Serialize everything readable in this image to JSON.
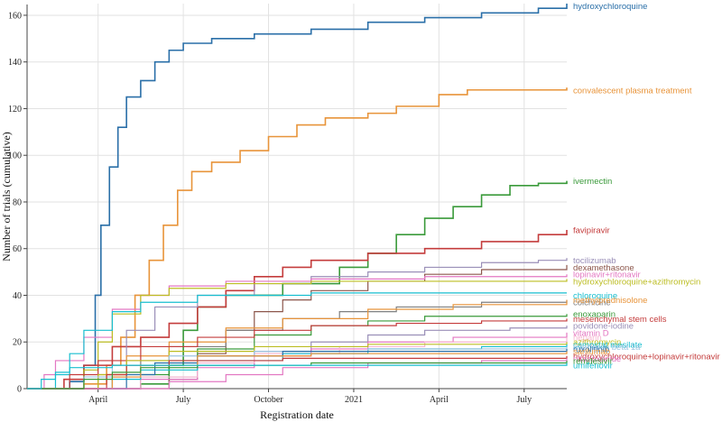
{
  "chart_data": {
    "type": "line",
    "title": "",
    "xlabel": "Registration date",
    "ylabel": "Number of trials (cumulative)",
    "xlim": [
      0,
      19
    ],
    "ylim": [
      0,
      165
    ],
    "x_ticks": [
      {
        "value": 2.5,
        "label": "April"
      },
      {
        "value": 5.5,
        "label": "July"
      },
      {
        "value": 8.5,
        "label": "October"
      },
      {
        "value": 11.5,
        "label": "2021"
      },
      {
        "value": 14.5,
        "label": "April"
      },
      {
        "value": 17.5,
        "label": "July"
      }
    ],
    "y_ticks": [
      0,
      20,
      40,
      60,
      80,
      100,
      120,
      140,
      160
    ],
    "grid": true,
    "series": [
      {
        "name": "hydroxychloroquine",
        "color": "#2a6fa8",
        "label_y": 164,
        "points": [
          [
            0.8,
            0
          ],
          [
            1.5,
            3
          ],
          [
            2,
            10
          ],
          [
            2.4,
            40
          ],
          [
            2.6,
            70
          ],
          [
            2.9,
            95
          ],
          [
            3.2,
            112
          ],
          [
            3.5,
            125
          ],
          [
            4,
            132
          ],
          [
            4.5,
            140
          ],
          [
            5,
            145
          ],
          [
            5.5,
            148
          ],
          [
            6.5,
            150
          ],
          [
            8,
            152
          ],
          [
            10,
            154
          ],
          [
            12,
            157
          ],
          [
            14,
            159
          ],
          [
            16,
            161
          ],
          [
            18,
            163
          ],
          [
            19,
            165
          ]
        ]
      },
      {
        "name": "convalescent plasma treatment",
        "color": "#e8943a",
        "label_y": 128,
        "points": [
          [
            0.8,
            0
          ],
          [
            2,
            2
          ],
          [
            2.8,
            10
          ],
          [
            3.3,
            22
          ],
          [
            3.8,
            40
          ],
          [
            4.3,
            55
          ],
          [
            4.8,
            70
          ],
          [
            5.3,
            85
          ],
          [
            5.8,
            93
          ],
          [
            6.5,
            97
          ],
          [
            7.5,
            102
          ],
          [
            8.5,
            108
          ],
          [
            9.5,
            113
          ],
          [
            10.5,
            116
          ],
          [
            12,
            118
          ],
          [
            13,
            121
          ],
          [
            14.5,
            126
          ],
          [
            15.5,
            128
          ],
          [
            19,
            129
          ]
        ]
      },
      {
        "name": "ivermectin",
        "color": "#3a9a3a",
        "label_y": 89,
        "points": [
          [
            1.5,
            0
          ],
          [
            4,
            2
          ],
          [
            5,
            10
          ],
          [
            5.5,
            25
          ],
          [
            6,
            35
          ],
          [
            7,
            40
          ],
          [
            9,
            45
          ],
          [
            11,
            52
          ],
          [
            12,
            58
          ],
          [
            13,
            66
          ],
          [
            14,
            73
          ],
          [
            15,
            78
          ],
          [
            16,
            83
          ],
          [
            17,
            87
          ],
          [
            18,
            88
          ],
          [
            19,
            89
          ]
        ]
      },
      {
        "name": "favipiravir",
        "color": "#c43c3c",
        "label_y": 68,
        "points": [
          [
            0.8,
            0
          ],
          [
            1.3,
            4
          ],
          [
            2,
            10
          ],
          [
            3,
            18
          ],
          [
            4,
            22
          ],
          [
            5,
            28
          ],
          [
            6,
            35
          ],
          [
            7,
            42
          ],
          [
            8,
            48
          ],
          [
            9,
            52
          ],
          [
            10,
            55
          ],
          [
            12,
            58
          ],
          [
            14,
            60
          ],
          [
            16,
            63
          ],
          [
            18,
            66
          ],
          [
            19,
            68
          ]
        ]
      },
      {
        "name": "tocilizumab",
        "color": "#9a8fb8",
        "label_y": 55,
        "points": [
          [
            1.5,
            0
          ],
          [
            2.5,
            5
          ],
          [
            3.5,
            25
          ],
          [
            4.5,
            35
          ],
          [
            6,
            40
          ],
          [
            8,
            45
          ],
          [
            10,
            48
          ],
          [
            12,
            50
          ],
          [
            14,
            52
          ],
          [
            16,
            54
          ],
          [
            18,
            55
          ],
          [
            19,
            56
          ]
        ]
      },
      {
        "name": "dexamethasone",
        "color": "#8c564b",
        "label_y": 52,
        "points": [
          [
            4,
            0
          ],
          [
            5,
            4
          ],
          [
            6,
            15
          ],
          [
            7,
            25
          ],
          [
            8,
            33
          ],
          [
            9,
            38
          ],
          [
            10,
            42
          ],
          [
            12,
            46
          ],
          [
            14,
            49
          ],
          [
            16,
            51
          ],
          [
            19,
            53
          ]
        ]
      },
      {
        "name": "lopinavir+ritonavir",
        "color": "#e377c2",
        "label_y": 49,
        "points": [
          [
            0.3,
            0
          ],
          [
            0.6,
            6
          ],
          [
            1,
            12
          ],
          [
            2,
            22
          ],
          [
            3,
            34
          ],
          [
            4,
            40
          ],
          [
            5,
            44
          ],
          [
            7,
            46
          ],
          [
            10,
            47
          ],
          [
            14,
            48
          ],
          [
            19,
            49
          ]
        ]
      },
      {
        "name": "hydroxychloroquine+azithromycin",
        "color": "#bcbd22",
        "label_y": 46,
        "points": [
          [
            1.5,
            0
          ],
          [
            2,
            8
          ],
          [
            2.5,
            20
          ],
          [
            3,
            32
          ],
          [
            4,
            40
          ],
          [
            5,
            43
          ],
          [
            7,
            45
          ],
          [
            10,
            46
          ],
          [
            14,
            46
          ],
          [
            19,
            47
          ]
        ]
      },
      {
        "name": "chloroquine",
        "color": "#17becf",
        "label_y": 40,
        "points": [
          [
            0.5,
            0
          ],
          [
            1,
            6
          ],
          [
            1.5,
            15
          ],
          [
            2,
            25
          ],
          [
            3,
            33
          ],
          [
            4,
            37
          ],
          [
            6,
            40
          ],
          [
            10,
            41
          ],
          [
            19,
            41
          ]
        ]
      },
      {
        "name": "colchicine",
        "color": "#7f7f7f",
        "label_y": 37,
        "points": [
          [
            2,
            0
          ],
          [
            3,
            5
          ],
          [
            4,
            12
          ],
          [
            5,
            18
          ],
          [
            7,
            25
          ],
          [
            9,
            30
          ],
          [
            11,
            33
          ],
          [
            13,
            35
          ],
          [
            16,
            37
          ],
          [
            19,
            38
          ]
        ]
      },
      {
        "name": "methylprednisolone",
        "color": "#e8943a",
        "label_y": 38,
        "points": [
          [
            1.5,
            0
          ],
          [
            2.5,
            6
          ],
          [
            3.5,
            14
          ],
          [
            5,
            20
          ],
          [
            7,
            26
          ],
          [
            9,
            30
          ],
          [
            12,
            34
          ],
          [
            15,
            36
          ],
          [
            19,
            38
          ]
        ]
      },
      {
        "name": "enoxaparin",
        "color": "#3a9a3a",
        "label_y": 32,
        "points": [
          [
            3,
            0
          ],
          [
            4,
            6
          ],
          [
            5,
            12
          ],
          [
            6,
            17
          ],
          [
            8,
            23
          ],
          [
            10,
            27
          ],
          [
            12,
            29
          ],
          [
            14,
            31
          ],
          [
            19,
            32
          ]
        ]
      },
      {
        "name": "mesenchymal stem cells",
        "color": "#c43c3c",
        "label_y": 30,
        "points": [
          [
            0.6,
            0
          ],
          [
            1.5,
            6
          ],
          [
            2.5,
            12
          ],
          [
            4,
            18
          ],
          [
            6,
            22
          ],
          [
            8,
            25
          ],
          [
            10,
            27
          ],
          [
            13,
            28
          ],
          [
            16,
            29
          ],
          [
            19,
            30
          ]
        ]
      },
      {
        "name": "povidone-iodine",
        "color": "#9a8fb8",
        "label_y": 27,
        "points": [
          [
            3,
            0
          ],
          [
            4,
            5
          ],
          [
            6,
            10
          ],
          [
            8,
            16
          ],
          [
            10,
            20
          ],
          [
            12,
            23
          ],
          [
            14,
            25
          ],
          [
            17,
            26
          ],
          [
            19,
            27
          ]
        ]
      },
      {
        "name": "vitamin D",
        "color": "#e377c2",
        "label_y": 24,
        "points": [
          [
            3,
            0
          ],
          [
            4,
            4
          ],
          [
            6,
            9
          ],
          [
            8,
            14
          ],
          [
            10,
            17
          ],
          [
            12,
            20
          ],
          [
            15,
            22
          ],
          [
            19,
            24
          ]
        ]
      },
      {
        "name": "heparin",
        "color": "#f7b6d2",
        "label_y": 22,
        "points": [
          [
            3,
            0
          ],
          [
            4,
            5
          ],
          [
            6,
            11
          ],
          [
            8,
            15
          ],
          [
            11,
            18
          ],
          [
            14,
            20
          ],
          [
            19,
            22
          ]
        ]
      },
      {
        "name": "azithromycin",
        "color": "#bcbd22",
        "label_y": 20,
        "points": [
          [
            1.5,
            0
          ],
          [
            2.5,
            6
          ],
          [
            3.5,
            12
          ],
          [
            5,
            16
          ],
          [
            8,
            18
          ],
          [
            12,
            19
          ],
          [
            19,
            20
          ]
        ]
      },
      {
        "name": "camostat mesilate",
        "color": "#17becf",
        "label_y": 19,
        "points": [
          [
            2,
            0
          ],
          [
            3,
            4
          ],
          [
            4,
            8
          ],
          [
            6,
            12
          ],
          [
            9,
            15
          ],
          [
            12,
            17
          ],
          [
            16,
            18
          ],
          [
            19,
            19
          ]
        ]
      },
      {
        "name": "interferon beta 1a",
        "color": "#9ec4e0",
        "label_y": 18,
        "points": [
          [
            1,
            0
          ],
          [
            2,
            5
          ],
          [
            3,
            10
          ],
          [
            5,
            14
          ],
          [
            8,
            16
          ],
          [
            12,
            17
          ],
          [
            19,
            18
          ]
        ]
      },
      {
        "name": "ruxolitinib",
        "color": "#2a6fa8",
        "label_y": 17,
        "points": [
          [
            2.5,
            0
          ],
          [
            3.5,
            6
          ],
          [
            4.5,
            11
          ],
          [
            6,
            14
          ],
          [
            9,
            16
          ],
          [
            19,
            17
          ]
        ]
      },
      {
        "name": "sarilumab",
        "color": "#e8943a",
        "label_y": 16,
        "points": [
          [
            2.5,
            0
          ],
          [
            3,
            5
          ],
          [
            4,
            10
          ],
          [
            6,
            14
          ],
          [
            10,
            15
          ],
          [
            19,
            16
          ]
        ]
      },
      {
        "name": "hydroxychloroquine+lopinavir+ritonavir",
        "color": "#c43c3c",
        "label_y": 14,
        "points": [
          [
            2,
            0
          ],
          [
            2.8,
            6
          ],
          [
            3.5,
            10
          ],
          [
            5,
            12
          ],
          [
            9,
            13
          ],
          [
            19,
            14
          ]
        ]
      },
      {
        "name": "nitazoxanide",
        "color": "#e377c2",
        "label_y": 13,
        "points": [
          [
            4,
            0
          ],
          [
            5,
            3
          ],
          [
            7,
            6
          ],
          [
            9,
            9
          ],
          [
            12,
            11
          ],
          [
            16,
            12
          ],
          [
            19,
            13
          ]
        ]
      },
      {
        "name": "remdesivir",
        "color": "#3a9a3a",
        "label_y": 12,
        "points": [
          [
            1,
            0
          ],
          [
            2,
            4
          ],
          [
            3,
            7
          ],
          [
            4,
            9
          ],
          [
            6,
            10
          ],
          [
            10,
            11
          ],
          [
            19,
            12
          ]
        ]
      },
      {
        "name": "umifenovir",
        "color": "#17becf",
        "label_y": 10,
        "points": [
          [
            0.2,
            0
          ],
          [
            0.5,
            4
          ],
          [
            1,
            7
          ],
          [
            1.5,
            9
          ],
          [
            3,
            10
          ],
          [
            19,
            11
          ]
        ]
      }
    ]
  }
}
